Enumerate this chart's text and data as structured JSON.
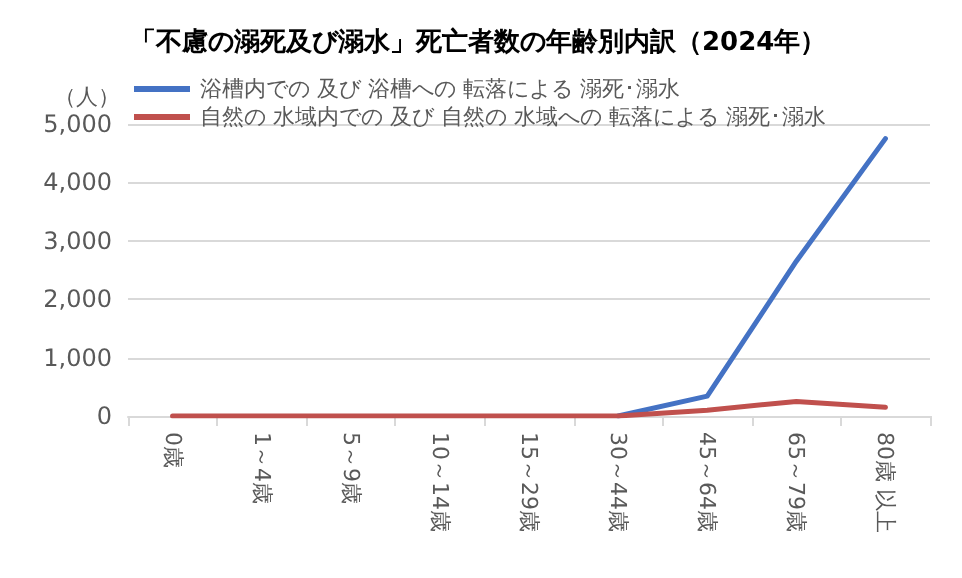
{
  "chart_data": {
    "type": "line",
    "title": "「不慮の溺死及び溺水」死亡者数の年齢別内訳（2024年）",
    "ylabel": "（人）",
    "categories": [
      "0歳",
      "1～4歳",
      "5～9歳",
      "10～14歳",
      "15～29歳",
      "30～44歳",
      "45～64歳",
      "65～79歳",
      "80歳 以上"
    ],
    "series": [
      {
        "name": "浴槽内での 及び 浴槽への 転落による 溺死･溺水",
        "color": "#4472c4",
        "values": [
          null,
          null,
          null,
          null,
          null,
          0,
          340,
          2650,
          4750
        ]
      },
      {
        "name": "自然の 水域内での 及び 自然の 水域への 転落による 溺死･溺水",
        "color": "#c0504d",
        "values": [
          0,
          0,
          0,
          0,
          0,
          0,
          100,
          250,
          150
        ]
      }
    ],
    "ylim": [
      0,
      5000
    ],
    "yticks": [
      0,
      {
        "value": 1000,
        "label": "1,000"
      },
      {
        "value": 2000,
        "label": "2,000"
      },
      {
        "value": 3000,
        "label": "3,000"
      },
      {
        "value": 4000,
        "label": "4,000"
      },
      {
        "value": 5000,
        "label": "5,000"
      }
    ],
    "grid": "y",
    "legend": "top left",
    "marker": "none",
    "line_style": "solid"
  }
}
